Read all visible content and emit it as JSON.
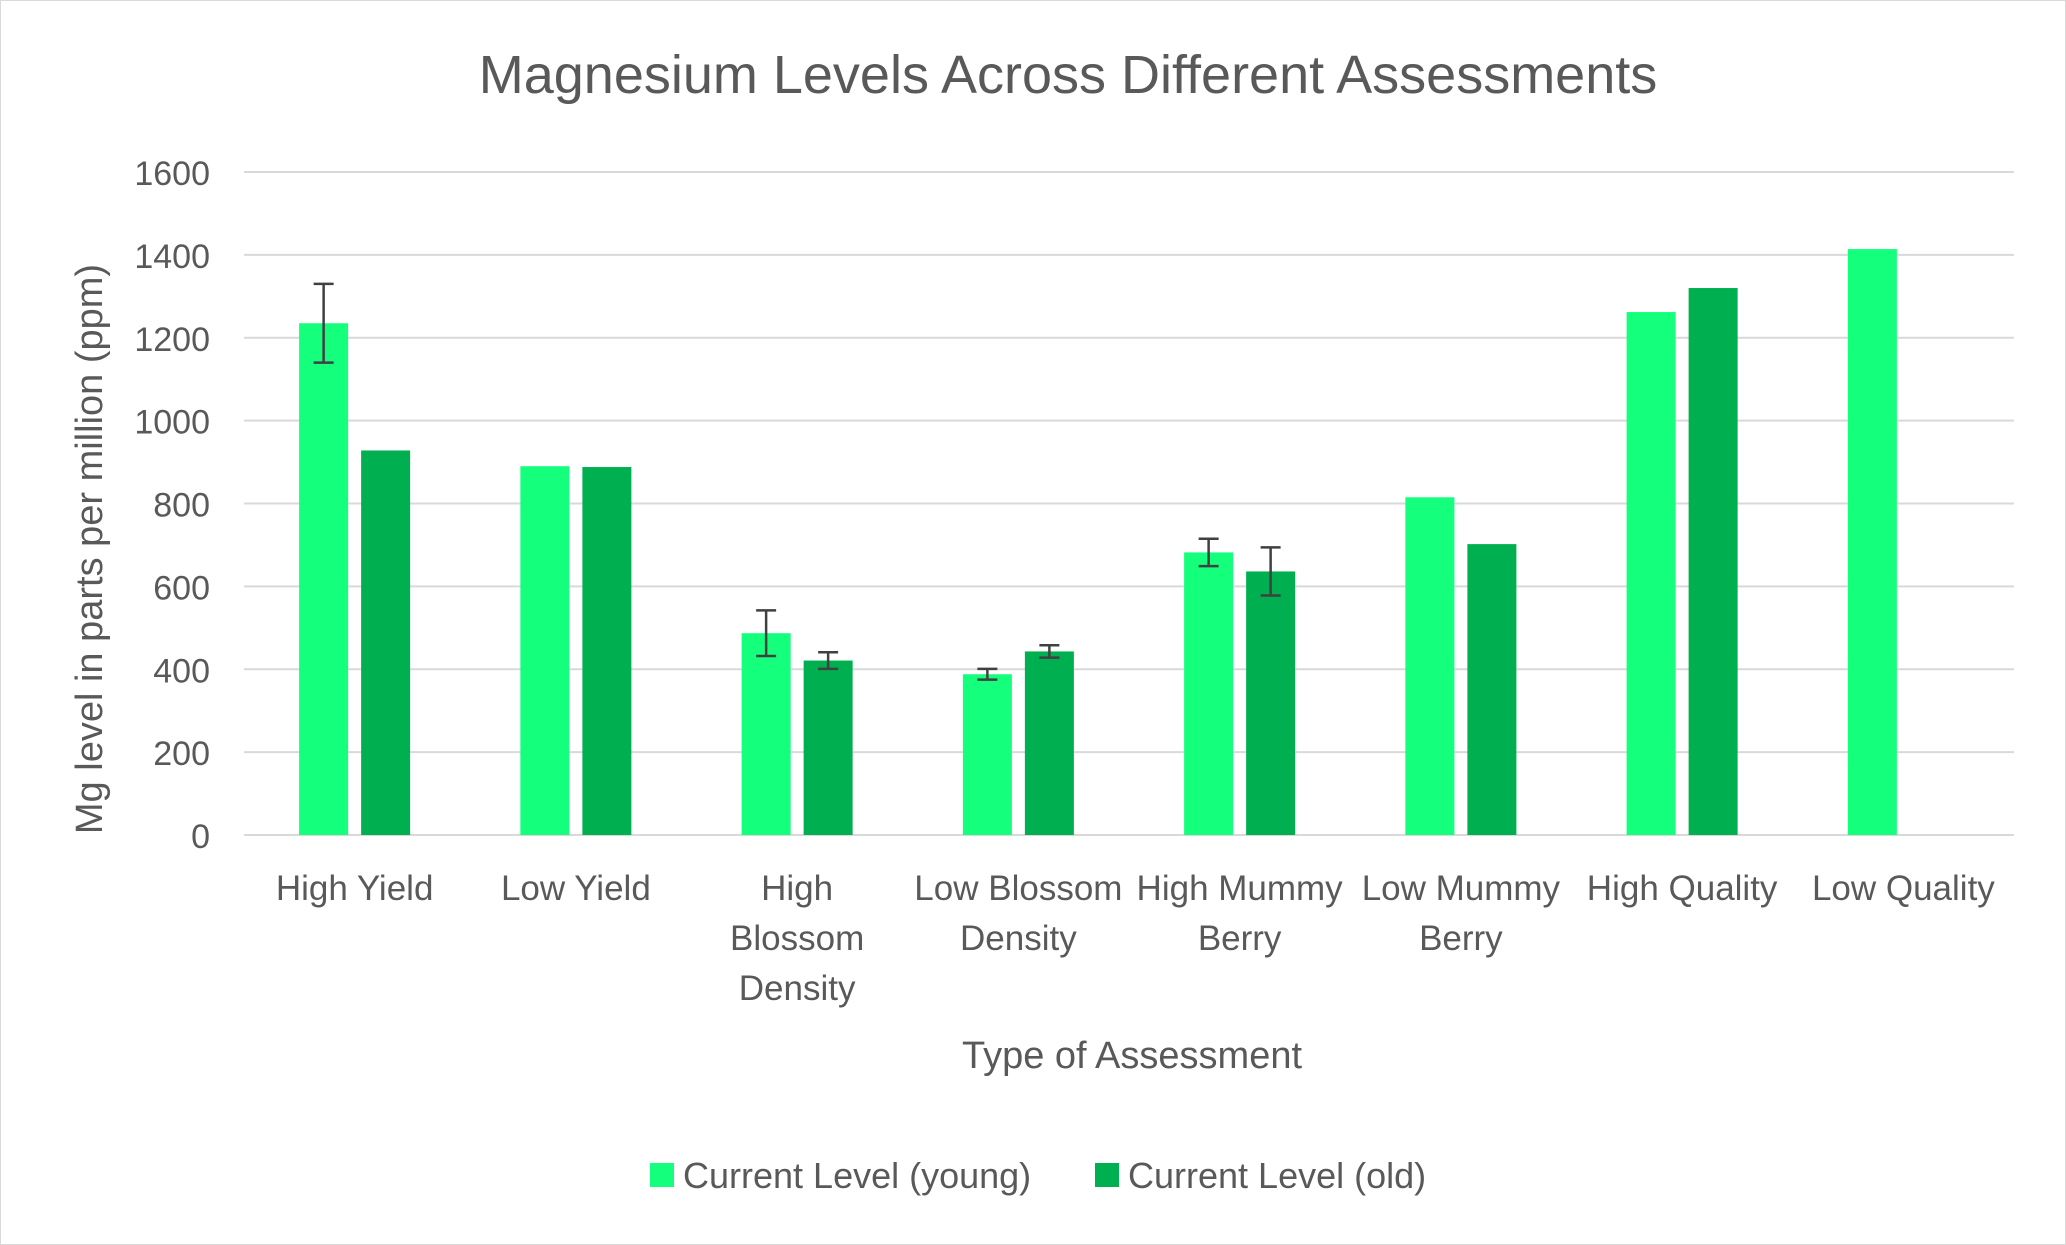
{
  "chart_data": {
    "type": "bar",
    "title": "Magnesium Levels Across Different Assessments",
    "xlabel": "Type of Assessment",
    "ylabel": "Mg level in parts per million (ppm)",
    "ylim": [
      0,
      1600
    ],
    "yticks": [
      0,
      200,
      400,
      600,
      800,
      1000,
      1200,
      1400,
      1600
    ],
    "grid": true,
    "legend_position": "bottom",
    "categories": [
      [
        "High Yield"
      ],
      [
        "Low Yield"
      ],
      [
        "High",
        "Blossom",
        "Density"
      ],
      [
        "Low Blossom",
        "Density"
      ],
      [
        "High Mummy",
        "Berry"
      ],
      [
        "Low Mummy",
        "Berry"
      ],
      [
        "High Quality"
      ],
      [
        "Low Quality"
      ]
    ],
    "series": [
      {
        "name": "Current Level (young)",
        "color": "#14ff7c",
        "values": [
          1235,
          890,
          487,
          388,
          682,
          815,
          1262,
          1414
        ],
        "error": [
          95,
          null,
          55,
          13,
          33,
          null,
          null,
          null
        ]
      },
      {
        "name": "Current Level (old)",
        "color": "#00b050",
        "values": [
          928,
          888,
          421,
          443,
          636,
          702,
          1320,
          null
        ],
        "error": [
          null,
          null,
          20,
          15,
          58,
          null,
          null,
          null
        ]
      }
    ]
  }
}
